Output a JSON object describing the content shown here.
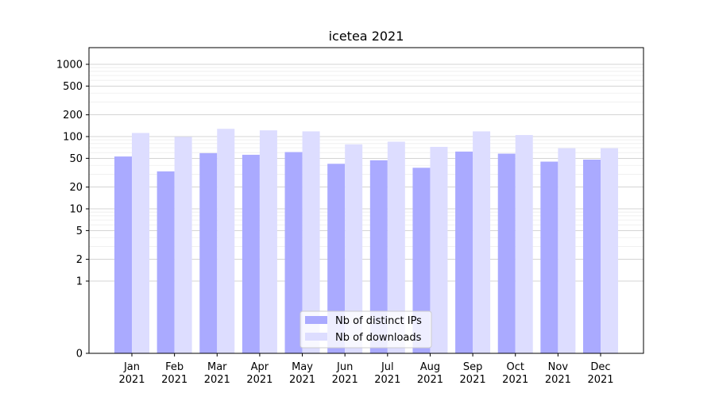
{
  "chart_data": {
    "type": "bar",
    "title": "icetea 2021",
    "xlabel": "",
    "ylabel": "",
    "y_scale": "symlog",
    "ylim": [
      0,
      1200
    ],
    "yticks": [
      0,
      1,
      2,
      5,
      10,
      20,
      50,
      100,
      200,
      500,
      1000
    ],
    "grid": true,
    "legend_position": "bottom-center",
    "categories": [
      "Jan\n2021",
      "Feb\n2021",
      "Mar\n2021",
      "Apr\n2021",
      "May\n2021",
      "Jun\n2021",
      "Jul\n2021",
      "Aug\n2021",
      "Sep\n2021",
      "Oct\n2021",
      "Nov\n2021",
      "Dec\n2021"
    ],
    "series": [
      {
        "name": "Nb of distinct IPs",
        "color": "#aaaaff",
        "values": [
          53,
          33,
          59,
          56,
          61,
          42,
          47,
          37,
          62,
          58,
          45,
          48
        ]
      },
      {
        "name": "Nb of downloads",
        "color": "#ddddff",
        "values": [
          112,
          99,
          128,
          122,
          118,
          78,
          85,
          72,
          118,
          105,
          69,
          69
        ]
      }
    ]
  }
}
